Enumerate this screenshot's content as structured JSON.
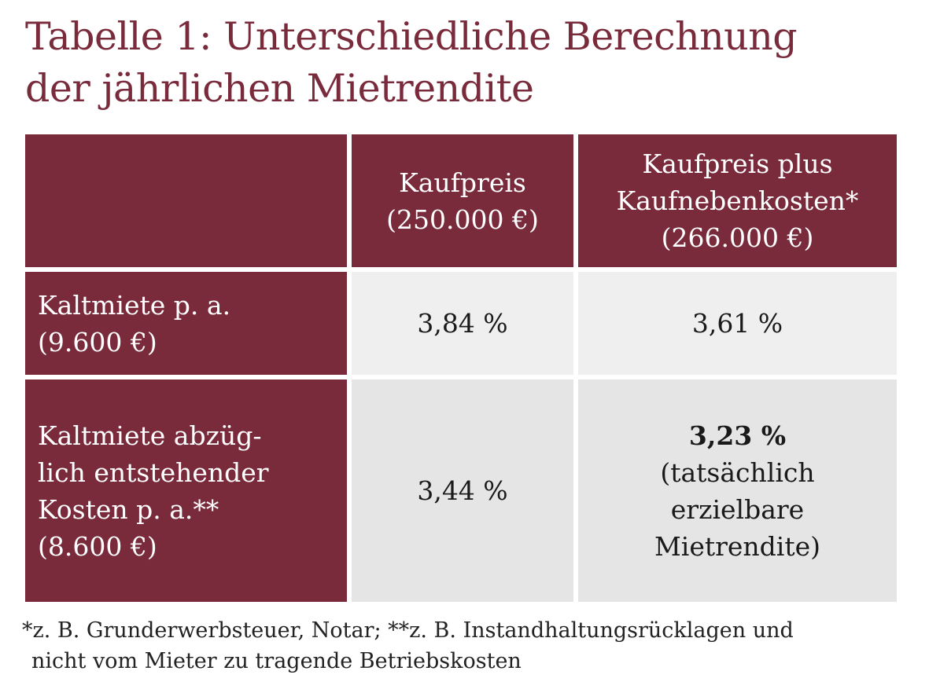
{
  "title": {
    "line1": "Tabelle 1: Unterschiedliche Berechnung",
    "line2": "der jährlichen Mietrendite"
  },
  "table": {
    "headers": {
      "col1": {
        "line1": "Kaufpreis",
        "line2": "(250.000 €)"
      },
      "col2": {
        "line1": "Kaufpreis plus",
        "line2": "Kaufnebenkosten*",
        "line3": "(266.000 €)"
      }
    },
    "rows": [
      {
        "label": {
          "line1": "Kaltmiete p. a.",
          "line2": "(9.600 €)"
        },
        "col1": "3,84 %",
        "col2": "3,61 %"
      },
      {
        "label": {
          "line1": "Kaltmiete abzüg-",
          "line2": "lich entstehender",
          "line3": "Kosten p. a.**",
          "line4": "(8.600 €)"
        },
        "col1": "3,44 %",
        "col2": {
          "value": "3,23 %",
          "line2": "(tatsächlich",
          "line3": "erzielbare",
          "line4": "Mietrendite)"
        }
      }
    ]
  },
  "footnote": {
    "line1": "*z. B. Grunderwerbsteuer, Notar; **z. B. Instandhaltungsrücklagen und",
    "line2": "nicht vom Mieter zu tragende Betriebskosten"
  },
  "colors": {
    "accent": "#7a2b3b",
    "cell_light": "#efefef",
    "cell_light_alt": "#e5e5e5"
  }
}
